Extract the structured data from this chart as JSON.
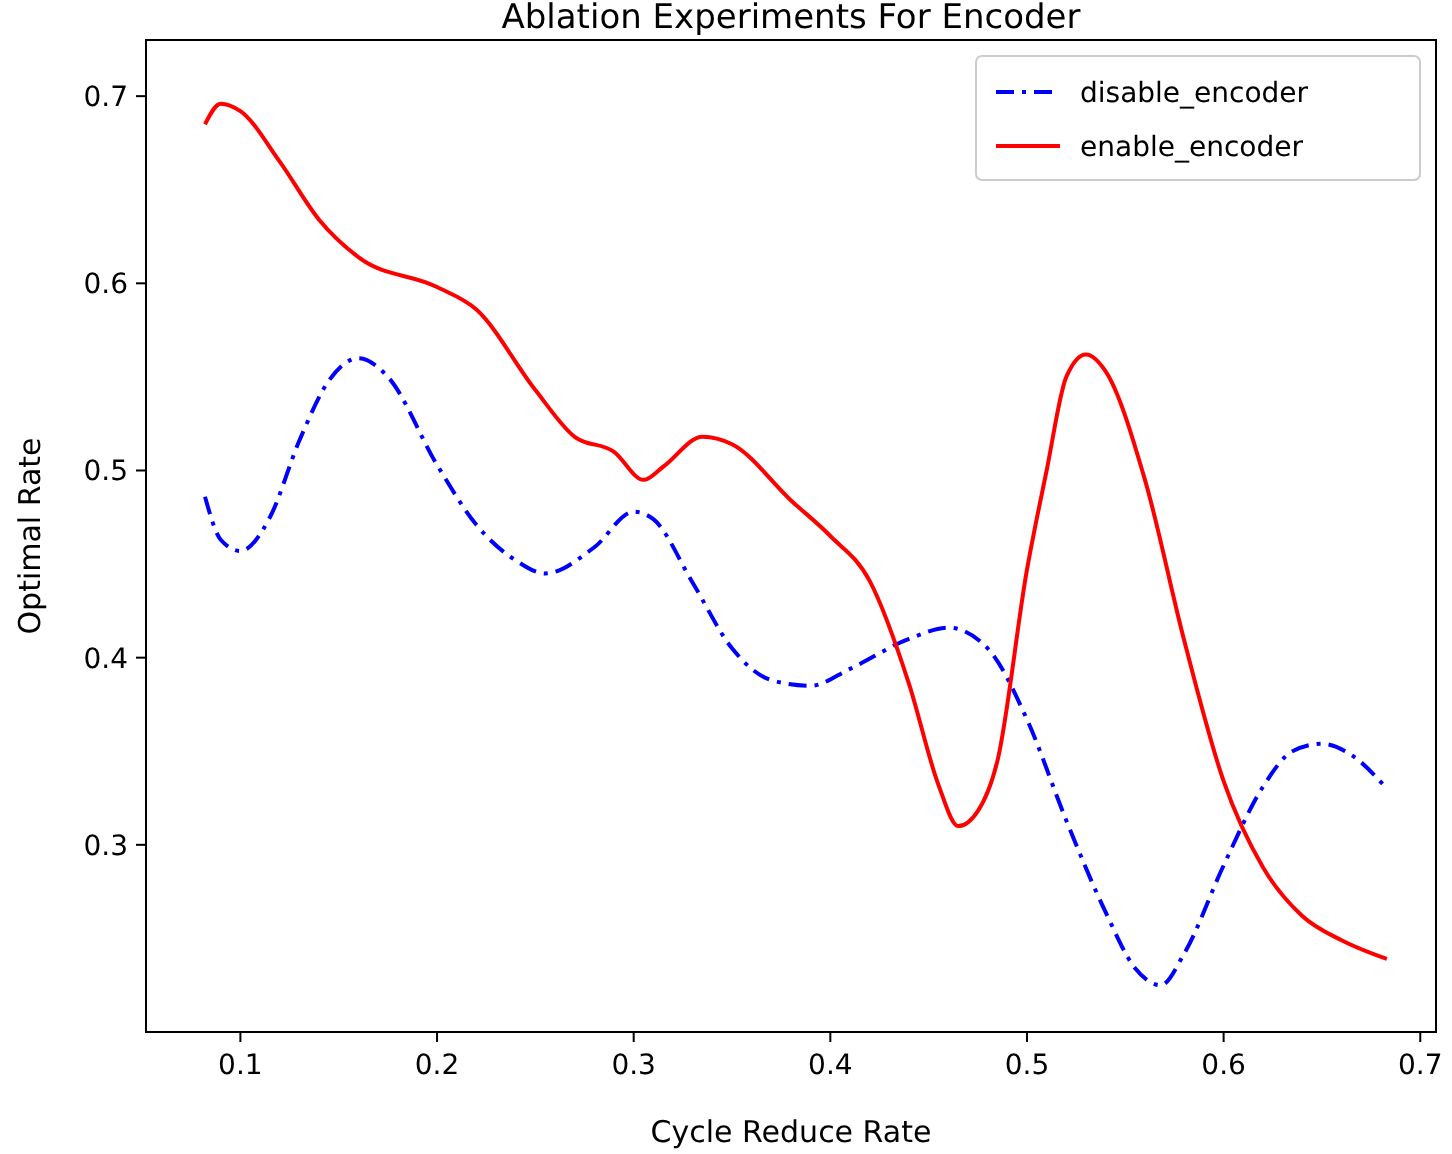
{
  "chart_data": {
    "type": "line",
    "title": "Ablation Experiments For Encoder",
    "xlabel": "Cycle Reduce Rate",
    "ylabel": "Optimal Rate",
    "xlim": [
      0.052,
      0.708
    ],
    "ylim": [
      0.2,
      0.73
    ],
    "xticks": [
      0.1,
      0.2,
      0.3,
      0.4,
      0.5,
      0.6,
      0.7
    ],
    "yticks": [
      0.3,
      0.4,
      0.5,
      0.6,
      0.7
    ],
    "grid": false,
    "legend": "top right",
    "marker": "none",
    "series": [
      {
        "name": "disable_encoder",
        "color": "#0000ff",
        "line_style": "dashdot",
        "x": [
          0.082,
          0.09,
          0.1,
          0.115,
          0.13,
          0.145,
          0.16,
          0.175,
          0.2,
          0.22,
          0.24,
          0.255,
          0.28,
          0.3,
          0.31,
          0.33,
          0.35,
          0.37,
          0.39,
          0.41,
          0.44,
          0.46,
          0.48,
          0.5,
          0.52,
          0.54,
          0.555,
          0.568,
          0.58,
          0.6,
          0.62,
          0.635,
          0.65,
          0.665,
          0.683
        ],
        "values": [
          0.486,
          0.463,
          0.457,
          0.475,
          0.516,
          0.548,
          0.56,
          0.55,
          0.503,
          0.471,
          0.452,
          0.445,
          0.459,
          0.478,
          0.474,
          0.44,
          0.405,
          0.388,
          0.385,
          0.394,
          0.41,
          0.416,
          0.405,
          0.367,
          0.313,
          0.264,
          0.234,
          0.225,
          0.242,
          0.289,
          0.331,
          0.35,
          0.354,
          0.348,
          0.33
        ]
      },
      {
        "name": "enable_encoder",
        "color": "#ff0000",
        "line_style": "solid",
        "x": [
          0.082,
          0.09,
          0.1,
          0.12,
          0.14,
          0.16,
          0.2,
          0.22,
          0.25,
          0.27,
          0.29,
          0.305,
          0.315,
          0.335,
          0.35,
          0.38,
          0.4,
          0.42,
          0.44,
          0.455,
          0.465,
          0.475,
          0.485,
          0.5,
          0.51,
          0.52,
          0.53,
          0.54,
          0.56,
          0.58,
          0.6,
          0.62,
          0.64,
          0.66,
          0.683
        ],
        "values": [
          0.685,
          0.696,
          0.692,
          0.665,
          0.634,
          0.614,
          0.598,
          0.586,
          0.543,
          0.518,
          0.51,
          0.495,
          0.502,
          0.518,
          0.514,
          0.484,
          0.465,
          0.441,
          0.386,
          0.332,
          0.31,
          0.318,
          0.345,
          0.447,
          0.5,
          0.55,
          0.562,
          0.553,
          0.495,
          0.409,
          0.334,
          0.288,
          0.262,
          0.249,
          0.239
        ]
      }
    ]
  }
}
